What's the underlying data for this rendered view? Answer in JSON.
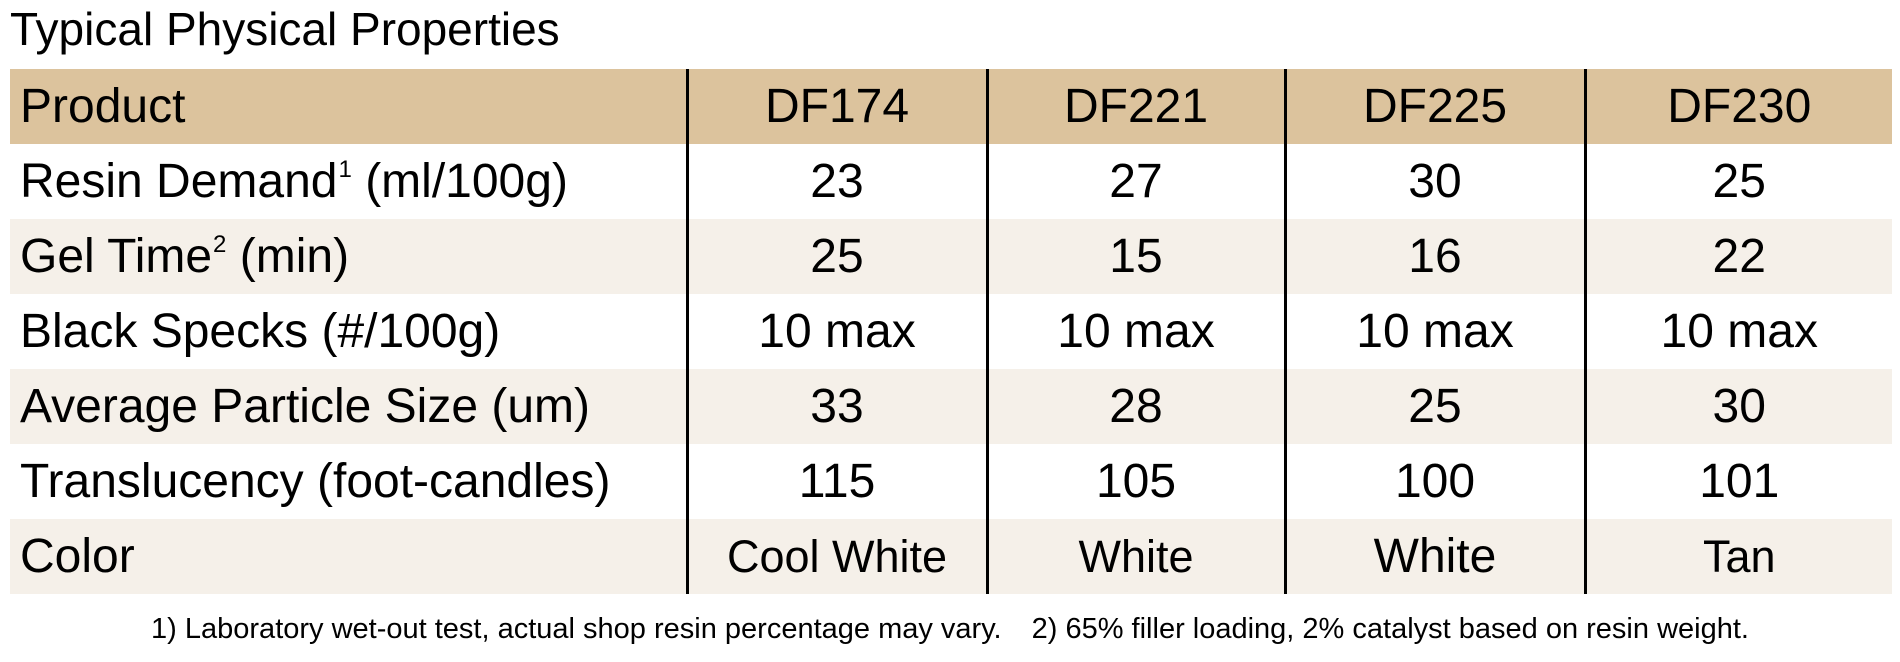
{
  "title": "Typical Physical Properties",
  "table": {
    "header": {
      "label": "Product",
      "products": [
        "DF174",
        "DF221",
        "DF225",
        "DF230"
      ]
    },
    "rows": [
      {
        "label": "Resin Demand",
        "sup": "1",
        "unit": "(ml/100g)",
        "values": [
          "23",
          "27",
          "30",
          "25"
        ]
      },
      {
        "label": "Gel Time",
        "sup": "2",
        "unit": "(min)",
        "values": [
          "25",
          "15",
          "16",
          "22"
        ]
      },
      {
        "label": "Black Specks (#/100g)",
        "sup": "",
        "unit": "",
        "values": [
          "10 max",
          "10 max",
          "10 max",
          "10 max"
        ]
      },
      {
        "label": "Average Particle Size (um)",
        "sup": "",
        "unit": "",
        "values": [
          "33",
          "28",
          "25",
          "30"
        ]
      },
      {
        "label": "Translucency (foot-candles)",
        "sup": "",
        "unit": "",
        "values": [
          "115",
          "105",
          "100",
          "101"
        ]
      },
      {
        "label": "Color",
        "sup": "",
        "unit": "",
        "values": [
          "Cool White",
          "White",
          "White",
          "Tan"
        ]
      }
    ]
  },
  "footnotes": [
    "1) Laboratory wet-out test, actual shop resin percentage may vary.",
    "2) 65% filler loading, 2% catalyst based on resin weight."
  ],
  "colors": {
    "header_background": "#dcc39d",
    "tinted_row_background": "#f5f0e9",
    "plain_row_background": "#ffffff",
    "column_divider": "#000000"
  }
}
